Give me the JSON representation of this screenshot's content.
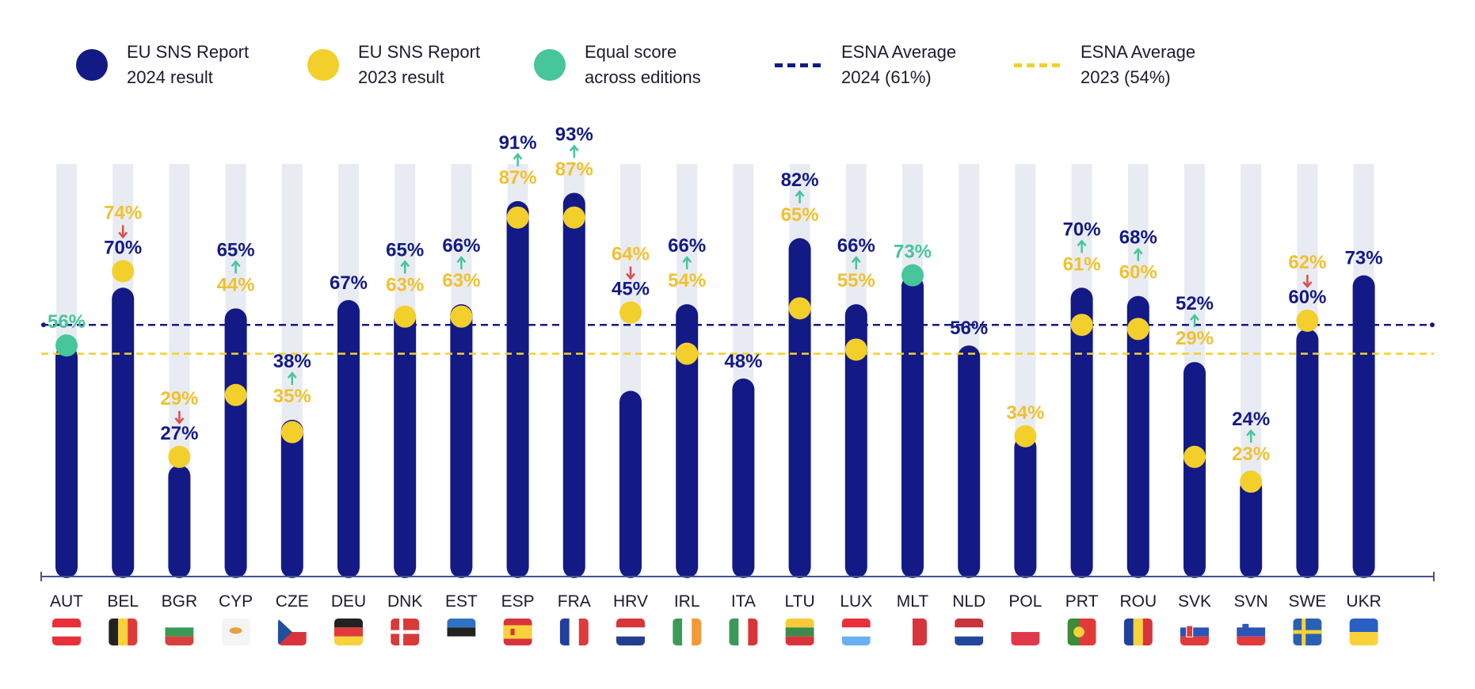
{
  "legend": {
    "result_2024": "EU SNS Report\n2024 result",
    "result_2023": "EU SNS Report\n2023 result",
    "equal": "Equal score\nacross editions",
    "avg_2024": "ESNA Average\n2024 (61%)",
    "avg_2023": "ESNA Average\n2023 (54%)"
  },
  "colors": {
    "navy": "#131a85",
    "yellow": "#f3cf2c",
    "yellow_text": "#efc12e",
    "green": "#46c69a",
    "red_arrow": "#e04a4a",
    "track": "#e9ebf3",
    "axis": "#4a4f9a"
  },
  "chart_data": {
    "type": "bar",
    "ylim": [
      0,
      100
    ],
    "averages": [
      {
        "name": "ESNA Average 2024 (61%)",
        "value": 61,
        "color": "#131a85"
      },
      {
        "name": "ESNA Average 2023 (54%)",
        "value": 54,
        "color": "#f3cf2c"
      }
    ],
    "categories": [
      "AUT",
      "BEL",
      "BGR",
      "CYP",
      "CZE",
      "DEU",
      "DNK",
      "EST",
      "ESP",
      "FRA",
      "HRV",
      "IRL",
      "ITA",
      "LTU",
      "LUX",
      "MLT",
      "NLD",
      "POL",
      "PRT",
      "ROU",
      "SVK",
      "SVN",
      "SWE",
      "UKR"
    ],
    "series": [
      {
        "name": "EU SNS Report 2024 result",
        "values": [
          56,
          70,
          27,
          65,
          38,
          67,
          65,
          66,
          91,
          93,
          45,
          66,
          48,
          82,
          66,
          73,
          56,
          null,
          70,
          68,
          52,
          24,
          60,
          73
        ],
        "labels": [
          "",
          "70%",
          "27%",
          "65%",
          "38%",
          "67%",
          "65%",
          "66%",
          "91%",
          "93%",
          "45%",
          "66%",
          "48%",
          "82%",
          "66%",
          "",
          "56%",
          "",
          "70%",
          "68%",
          "52%",
          "24%",
          "60%",
          "73%"
        ]
      },
      {
        "name": "EU SNS Report 2023 result",
        "values": [
          56,
          74,
          29,
          44,
          35,
          null,
          63,
          63,
          87,
          87,
          64,
          54,
          null,
          65,
          55,
          73,
          null,
          34,
          61,
          60,
          29,
          23,
          62,
          null
        ],
        "labels": [
          "",
          "74%",
          "29%",
          "44%",
          "35%",
          "",
          "63%",
          "63%",
          "87%",
          "87%",
          "64%",
          "54%",
          "",
          "65%",
          "55%",
          "",
          "",
          "34%",
          "61%",
          "60%",
          "29%",
          "23%",
          "62%",
          ""
        ]
      }
    ],
    "equal_labels": [
      "56%",
      "",
      "",
      "",
      "",
      "",
      "",
      "",
      "",
      "",
      "",
      "",
      "",
      "",
      "",
      "73%",
      "",
      "",
      "",
      "",
      "",
      "",
      "",
      ""
    ],
    "change": [
      "equal",
      "down",
      "down",
      "up",
      "up",
      "",
      "up",
      "up",
      "up",
      "up",
      "down",
      "up",
      "",
      "up",
      "up",
      "equal",
      "",
      "",
      "up",
      "up",
      "up",
      "up",
      "down",
      ""
    ],
    "flags": [
      {
        "type": "h",
        "colors": [
          "#e8303a",
          "#ffffff",
          "#e8303a"
        ]
      },
      {
        "type": "v",
        "colors": [
          "#222222",
          "#f8d23a",
          "#e03a3a"
        ]
      },
      {
        "type": "h",
        "colors": [
          "#ffffff",
          "#3a9a55",
          "#d84040"
        ]
      },
      {
        "type": "cyprus",
        "colors": [
          "#f4f4f4",
          "#e8a040"
        ]
      },
      {
        "type": "cze",
        "colors": [
          "#ffffff",
          "#d8343c",
          "#23509b"
        ]
      },
      {
        "type": "h",
        "colors": [
          "#222222",
          "#e03a3a",
          "#f8d23a"
        ]
      },
      {
        "type": "nordic",
        "colors": [
          "#d83a3a",
          "#ffffff"
        ]
      },
      {
        "type": "h",
        "colors": [
          "#2f72c4",
          "#222222",
          "#ffffff"
        ]
      },
      {
        "type": "esp",
        "colors": [
          "#d8343c",
          "#f8d23a"
        ]
      },
      {
        "type": "v",
        "colors": [
          "#233f9b",
          "#ffffff",
          "#e03a3a"
        ]
      },
      {
        "type": "h",
        "colors": [
          "#d8343c",
          "#ffffff",
          "#22408f"
        ]
      },
      {
        "type": "v",
        "colors": [
          "#3c9a58",
          "#ffffff",
          "#f29a3a"
        ]
      },
      {
        "type": "v",
        "colors": [
          "#3c9a58",
          "#ffffff",
          "#d8343c"
        ]
      },
      {
        "type": "h",
        "colors": [
          "#f8c93a",
          "#3c8a4a",
          "#d8343c"
        ]
      },
      {
        "type": "h",
        "colors": [
          "#e8303a",
          "#ffffff",
          "#6ab0ee"
        ]
      },
      {
        "type": "v2",
        "colors": [
          "#ffffff",
          "#d8343c"
        ]
      },
      {
        "type": "h",
        "colors": [
          "#c8343c",
          "#ffffff",
          "#23459b"
        ]
      },
      {
        "type": "h2",
        "colors": [
          "#ffffff",
          "#e03a4a"
        ]
      },
      {
        "type": "prt",
        "colors": [
          "#3c8a3a",
          "#e03a3a",
          "#f8d23a"
        ]
      },
      {
        "type": "v",
        "colors": [
          "#23409b",
          "#f8d23a",
          "#d8343c"
        ]
      },
      {
        "type": "svk",
        "colors": [
          "#ffffff",
          "#2a55b4",
          "#e03a3a"
        ]
      },
      {
        "type": "svn",
        "colors": [
          "#ffffff",
          "#2a55b4",
          "#e03a3a"
        ]
      },
      {
        "type": "nordic",
        "colors": [
          "#2a60b4",
          "#f8d23a"
        ]
      },
      {
        "type": "h2",
        "colors": [
          "#2a60c4",
          "#f8d23a"
        ]
      }
    ]
  }
}
